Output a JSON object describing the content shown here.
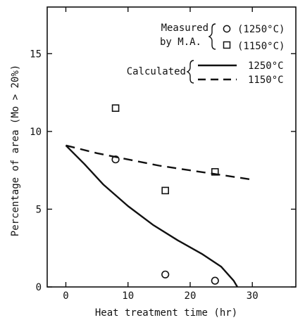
{
  "chart_data": {
    "type": "scatter",
    "xlabel": "Heat treatment time (hr)",
    "ylabel": "Percentage of area (Mo > 20%)",
    "xlim": [
      -3,
      37
    ],
    "ylim": [
      0,
      18
    ],
    "x_ticks": [
      0,
      10,
      20,
      30
    ],
    "y_ticks": [
      0,
      5,
      10,
      15
    ],
    "grid": false,
    "legend_position": "top-right",
    "legend": {
      "measured_label_line1": "Measured",
      "measured_label_line2": "by M.A.",
      "calculated_label": "Calculated"
    },
    "series": [
      {
        "name": "(1250°C)",
        "kind": "measured",
        "marker": "circle",
        "points": [
          [
            8,
            8.2
          ],
          [
            16,
            0.8
          ],
          [
            24,
            0.4
          ]
        ]
      },
      {
        "name": "(1150°C)",
        "kind": "measured",
        "marker": "square",
        "points": [
          [
            8,
            11.5
          ],
          [
            16,
            6.2
          ],
          [
            24,
            7.4
          ]
        ]
      },
      {
        "name": "1250°C",
        "kind": "calculated",
        "style": "solid",
        "points": [
          [
            0,
            9.1
          ],
          [
            3,
            7.9
          ],
          [
            6,
            6.6
          ],
          [
            10,
            5.2
          ],
          [
            14,
            4.0
          ],
          [
            18,
            3.0
          ],
          [
            22,
            2.1
          ],
          [
            25,
            1.3
          ],
          [
            27,
            0.4
          ],
          [
            27.6,
            0
          ]
        ]
      },
      {
        "name": "1150°C",
        "kind": "calculated",
        "style": "dashed",
        "points": [
          [
            0,
            9.1
          ],
          [
            5,
            8.6
          ],
          [
            10,
            8.2
          ],
          [
            15,
            7.8
          ],
          [
            20,
            7.5
          ],
          [
            25,
            7.2
          ],
          [
            30,
            6.9
          ]
        ]
      }
    ]
  }
}
